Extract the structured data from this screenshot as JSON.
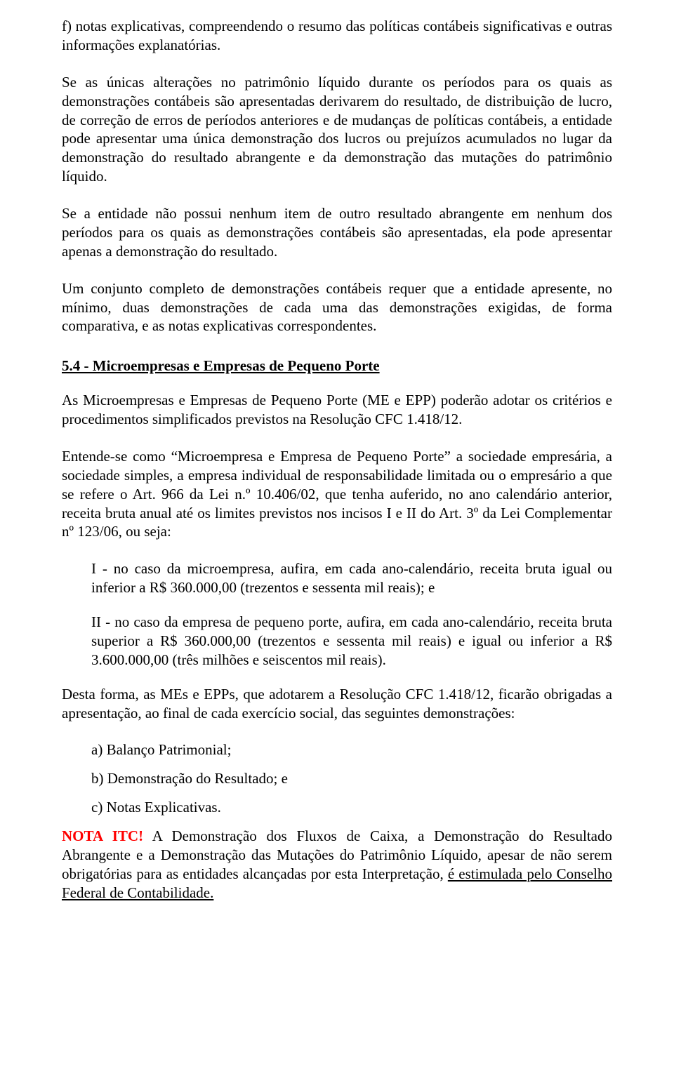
{
  "p_f": "f) notas explicativas, compreendendo o resumo das políticas contábeis significativas e outras informações explanatórias.",
  "p1": "Se as únicas alterações no patrimônio líquido durante os períodos para os quais as demonstrações contábeis são apresentadas derivarem do resultado, de distribuição de lucro, de correção de erros de períodos anteriores e de mudanças de políticas contábeis, a entidade pode apresentar uma única demonstração dos lucros ou prejuízos acumulados no lugar da demonstração do resultado abrangente e da demonstração das mutações do patrimônio líquido.",
  "p2": "Se a entidade não possui nenhum item de outro resultado abrangente em nenhum dos períodos para os quais as demonstrações contábeis são apresentadas, ela pode apresentar apenas a demonstração do resultado.",
  "p3": "Um conjunto completo de demonstrações contábeis requer que a entidade apresente, no mínimo, duas demonstrações de cada uma das demonstrações exigidas, de forma comparativa, e as notas explicativas correspondentes.",
  "heading": "5.4 - Microempresas e Empresas de Pequeno Porte",
  "p4": "As Microempresas e Empresas de Pequeno Porte (ME e EPP) poderão adotar os critérios e procedimentos simplificados previstos na Resolução CFC 1.418/12.",
  "p5": "Entende-se como “Microempresa e Empresa de Pequeno Porte” a sociedade empresária, a sociedade simples, a empresa individual de responsabilidade limitada ou o empresário a que se refere o Art. 966 da Lei n.º 10.406/02, que tenha auferido, no ano calendário anterior, receita bruta anual até os limites previstos nos incisos I e II do Art. 3º da Lei Complementar nº 123/06, ou seja:",
  "li_I": "I - no caso da microempresa, aufira, em cada ano-calendário, receita bruta igual ou inferior a R$ 360.000,00 (trezentos e sessenta mil reais); e",
  "li_II": "II - no caso da empresa de pequeno porte, aufira, em cada ano-calendário, receita bruta superior a R$ 360.000,00 (trezentos e sessenta mil reais) e igual ou inferior a R$ 3.600.000,00 (três milhões e seiscentos mil reais).",
  "p6": "Desta forma, as MEs e EPPs, que adotarem a Resolução CFC 1.418/12, ficarão obrigadas a apresentação, ao final de cada exercício social, das seguintes demonstrações:",
  "sa": "a) Balanço Patrimonial;",
  "sb": "b) Demonstração do Resultado; e",
  "sc": "c) Notas Explicativas.",
  "nota_label": "NOTA ITC!",
  "nota_body": " A Demonstração dos Fluxos de Caixa, a Demonstração do Resultado Abrangente e a Demonstração das Mutações do Patrimônio Líquido, apesar de não serem obrigatórias para as entidades alcançadas por esta Interpretação, ",
  "nota_underline": "é estimulada pelo Conselho Federal de Contabilidade."
}
